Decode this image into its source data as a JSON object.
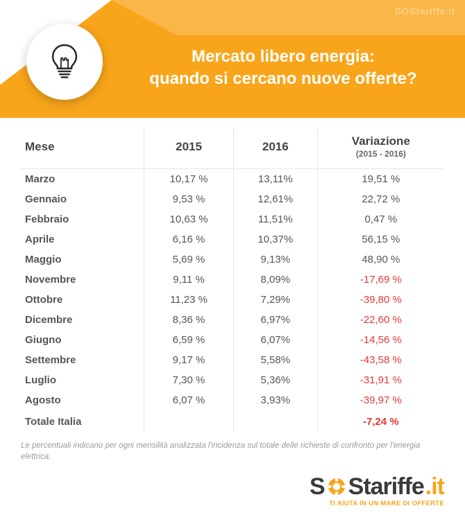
{
  "header": {
    "title_line1": "Mercato libero energia:",
    "title_line2": "quando si cercano nuove offerte?",
    "icon": "lightbulb-icon",
    "bg_color": "#f8a51b",
    "bg_color_light": "#fbc56a",
    "watermark": "SOStariffe.it"
  },
  "table": {
    "columns": {
      "col1": "Mese",
      "col2": "2015",
      "col3": "2016",
      "col4": "Variazione",
      "col4_sub": "(2015 - 2016)"
    },
    "rows": [
      {
        "mese": "Marzo",
        "y2015": "10,17 %",
        "y2016": "13,11%",
        "var": "19,51 %",
        "neg": false
      },
      {
        "mese": "Gennaio",
        "y2015": "9,53 %",
        "y2016": "12,61%",
        "var": "22,72 %",
        "neg": false
      },
      {
        "mese": "Febbraio",
        "y2015": "10,63 %",
        "y2016": "11,51%",
        "var": "0,47 %",
        "neg": false
      },
      {
        "mese": "Aprile",
        "y2015": "6,16 %",
        "y2016": "10,37%",
        "var": "56,15 %",
        "neg": false
      },
      {
        "mese": "Maggio",
        "y2015": "5,69 %",
        "y2016": "9,13%",
        "var": "48,90 %",
        "neg": false
      },
      {
        "mese": "Novembre",
        "y2015": "9,11 %",
        "y2016": "8,09%",
        "var": "-17,69 %",
        "neg": true
      },
      {
        "mese": "Ottobre",
        "y2015": "11,23 %",
        "y2016": "7,29%",
        "var": "-39,80 %",
        "neg": true
      },
      {
        "mese": "Dicembre",
        "y2015": "8,36 %",
        "y2016": "6,97%",
        "var": "-22,60 %",
        "neg": true
      },
      {
        "mese": "Giugno",
        "y2015": "6,59 %",
        "y2016": "6,07%",
        "var": "-14,56 %",
        "neg": true
      },
      {
        "mese": "Settembre",
        "y2015": "9,17 %",
        "y2016": "5,58%",
        "var": "-43,58 %",
        "neg": true
      },
      {
        "mese": "Luglio",
        "y2015": "7,30 %",
        "y2016": "5,36%",
        "var": "-31,91 %",
        "neg": true
      },
      {
        "mese": "Agosto",
        "y2015": "6,07 %",
        "y2016": "3,93%",
        "var": "-39,97 %",
        "neg": true
      }
    ],
    "total": {
      "mese": "Totale Italia",
      "y2015": "",
      "y2016": "",
      "var": "-7,24 %",
      "neg": true
    },
    "header_text_color": "#444444",
    "body_text_color": "#555555",
    "negative_color": "#e53935",
    "border_color": "#e6e6e6",
    "row_fontsize": 15,
    "header_fontsize": 17
  },
  "footnote": "Le percentuali indicano per ogni mensilità analizzata l'incidenza sul totale delle richieste di confronto per l'energia elettrica.",
  "logo": {
    "part_s": "S",
    "part_rest": "Stariffe",
    "part_it": ".it",
    "tagline": "TI AIUTA IN UN MARE DI OFFERTE",
    "brand_color": "#f8a51b",
    "text_color": "#3a3a3a"
  }
}
